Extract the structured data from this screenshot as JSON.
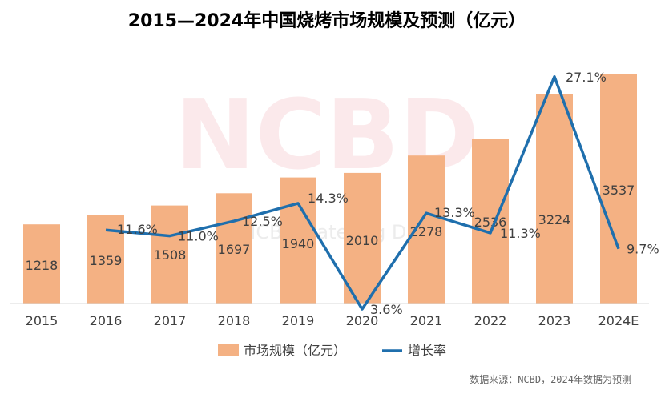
{
  "chart_data": {
    "type": "bar",
    "title": "2015—2024年中国烧烤市场规模及预测（亿元）",
    "categories": [
      "2015",
      "2016",
      "2017",
      "2018",
      "2019",
      "2020",
      "2021",
      "2022",
      "2023",
      "2024E"
    ],
    "series": [
      {
        "name": "市场规模（亿元）",
        "type": "bar",
        "color": "#f4b183",
        "values": [
          1218,
          1359,
          1508,
          1697,
          1940,
          2010,
          2278,
          2536,
          3224,
          3537
        ],
        "labels": [
          "1218",
          "1359",
          "1508",
          "1697",
          "1940",
          "2010",
          "2278",
          "2536",
          "3224",
          "3537"
        ],
        "ylim": [
          0,
          4000
        ]
      },
      {
        "name": "增长率",
        "type": "line",
        "color": "#1f6fad",
        "values": [
          null,
          11.6,
          11.0,
          12.5,
          14.3,
          3.6,
          13.3,
          11.3,
          27.1,
          9.7
        ],
        "labels": [
          "",
          "11.6%",
          "11.0%",
          "12.5%",
          "14.3%",
          "3.6%",
          "13.3%",
          "11.3%",
          "27.1%",
          "9.7%"
        ],
        "ylim": [
          0,
          30
        ]
      }
    ],
    "legend_position": "bottom",
    "grid": false
  },
  "watermark": {
    "main": "NCBD",
    "sub": "宝 NCBD Catering Data"
  },
  "source_note": "数据来源：NCBD，2024年数据为预测"
}
